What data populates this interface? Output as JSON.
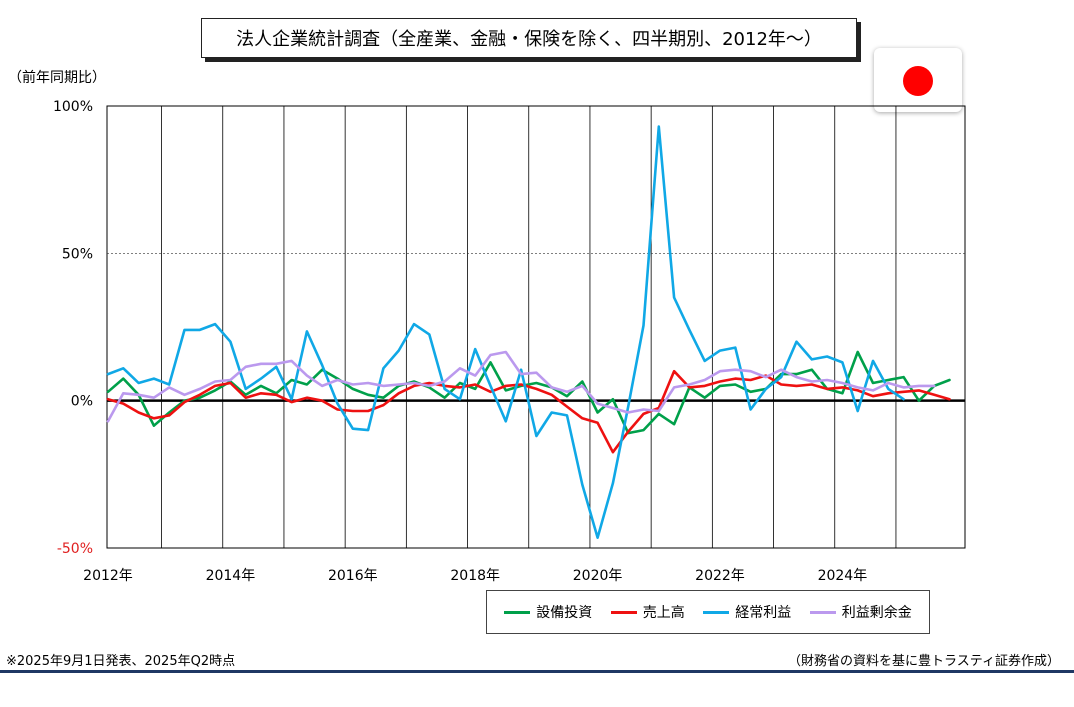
{
  "title": "法人企業統計調査（全産業、金融・保険を除く、四半期別、2012年～）",
  "flag_icon": "japan-flag-icon",
  "y_unit_label": "（前年同期比）",
  "footnote_left": "※2025年9月1日発表、2025年Q2時点",
  "footnote_right": "（財務省の資料を基に豊トラスティ証券作成）",
  "colors": {
    "capex": "#00a04a",
    "sales": "#ee1111",
    "profit": "#10a8e6",
    "retained": "#bb99ee",
    "negative_tick": "#e02020",
    "rule": "#1f3864"
  },
  "legend": [
    {
      "key": "capex",
      "label": "設備投資"
    },
    {
      "key": "sales",
      "label": "売上高"
    },
    {
      "key": "profit",
      "label": "経常利益"
    },
    {
      "key": "retained",
      "label": "利益剰余金"
    }
  ],
  "chart_data": {
    "type": "line",
    "x_start": "2012年Q1",
    "x_step": "quarter",
    "x_tick_labels": [
      "2012年",
      "2014年",
      "2016年",
      "2018年",
      "2020年",
      "2022年",
      "2024年"
    ],
    "y_tick_labels": [
      "100%",
      "50%",
      "0%",
      "-50%"
    ],
    "y_ticks": [
      100,
      50,
      0,
      -50
    ],
    "ylim": [
      -50,
      100
    ],
    "grid": true,
    "legend_position": "bottom-right",
    "series": [
      {
        "key": "capex",
        "name": "設備投資",
        "values": [
          3,
          7.5,
          2,
          -8.5,
          -4,
          0,
          1,
          3.5,
          6.5,
          2,
          5,
          2.5,
          7,
          5.5,
          10.5,
          7.5,
          4,
          2,
          1,
          5,
          6.5,
          4.5,
          1,
          6,
          4,
          13,
          3.5,
          5,
          6,
          4.5,
          1.5,
          6.5,
          -4,
          0.5,
          -11,
          -10,
          -4.5,
          -8,
          4.5,
          1,
          5,
          5.5,
          3,
          4,
          9,
          9,
          10.5,
          4,
          2.5,
          16.5,
          6,
          7,
          8,
          0,
          5,
          7
        ]
      },
      {
        "key": "sales",
        "name": "売上高",
        "values": [
          0.5,
          -1,
          -4,
          -6,
          -5,
          -0.5,
          2,
          5,
          6,
          1,
          2.5,
          2,
          -0.5,
          1,
          0,
          -3,
          -3.5,
          -3.5,
          -1.5,
          2.5,
          5,
          6,
          5,
          4.5,
          5.5,
          3,
          5,
          5.5,
          4,
          2,
          -2,
          -6,
          -7.5,
          -17.5,
          -10.5,
          -4.5,
          -2.5,
          10,
          4.5,
          5,
          6.5,
          7.5,
          7,
          8.5,
          5.5,
          5,
          5.5,
          4,
          4.5,
          3.5,
          1.5,
          2.5,
          3,
          3.5,
          2,
          0.5
        ]
      },
      {
        "key": "profit",
        "name": "経常利益",
        "values": [
          9,
          11,
          6,
          7.5,
          5.5,
          24,
          24,
          26,
          20,
          4,
          7.5,
          11.5,
          0.5,
          23.5,
          12,
          -1,
          -9.5,
          -10,
          11,
          17,
          26,
          22.5,
          4,
          0.5,
          17.5,
          5,
          -7,
          10.5,
          -12,
          -4,
          -5,
          -28.5,
          -46.5,
          -28,
          -2,
          25.5,
          93,
          35,
          24,
          13.5,
          17,
          18,
          -3,
          4,
          8,
          20,
          14,
          15,
          13,
          -3.5,
          13.5,
          4,
          0.5,
          null,
          null,
          null
        ]
      },
      {
        "key": "retained",
        "name": "利益剰余金",
        "values": [
          -7,
          2.5,
          2,
          1,
          4.5,
          2,
          4,
          6.5,
          7,
          11.5,
          12.5,
          12.5,
          13.5,
          8.5,
          5,
          7,
          5.5,
          6,
          5,
          5.5,
          6,
          5,
          6.5,
          11,
          8.5,
          15.5,
          16.5,
          9,
          9.5,
          4.5,
          3,
          5,
          -1,
          -2.5,
          -4,
          -3,
          -3.5,
          4.5,
          5.5,
          7,
          10,
          10.5,
          10,
          8,
          10.5,
          8,
          6.5,
          7,
          6,
          4.5,
          3.5,
          6,
          4.5,
          5,
          5,
          null
        ]
      }
    ]
  }
}
